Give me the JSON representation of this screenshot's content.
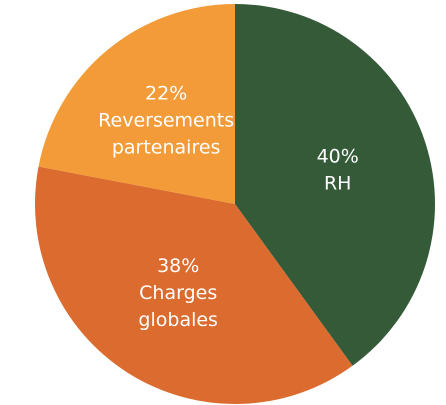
{
  "chart_data": {
    "type": "pie",
    "title": "",
    "legend": "none",
    "slices": [
      {
        "label": "RH",
        "value": 40,
        "value_label": "40%",
        "label_lines": [
          "40%",
          "RH"
        ],
        "color": "#345a38"
      },
      {
        "label": "Charges globales",
        "value": 38,
        "value_label": "38%",
        "label_lines": [
          "38%",
          "Charges",
          "globales"
        ],
        "color": "#db6b2f"
      },
      {
        "label": "Reversements partenaires",
        "value": 22,
        "value_label": "22%",
        "label_lines": [
          "22%",
          "Reversements",
          "partenaires"
        ],
        "color": "#f29b38"
      }
    ]
  }
}
